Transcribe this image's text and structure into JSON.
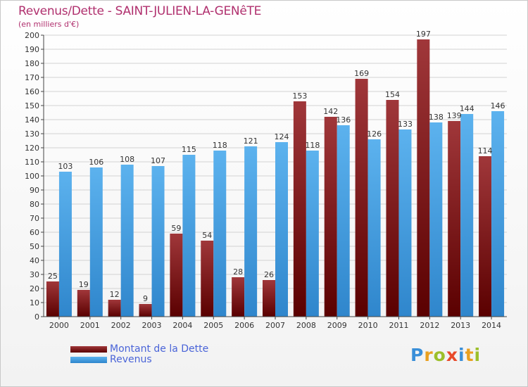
{
  "header": {
    "title": "Revenus/Dette - SAINT-JULIEN-LA-GENêTE",
    "subtitle": "(en milliers d'€)"
  },
  "chart_data": {
    "type": "bar",
    "categories": [
      "2000",
      "2001",
      "2002",
      "2003",
      "2004",
      "2005",
      "2006",
      "2007",
      "2008",
      "2009",
      "2010",
      "2011",
      "2012",
      "2013",
      "2014"
    ],
    "series": [
      {
        "name": "Montant de la Dette",
        "color": "#7a1a1a",
        "values": [
          25,
          19,
          12,
          9,
          59,
          54,
          28,
          26,
          153,
          142,
          169,
          154,
          197,
          139,
          114
        ]
      },
      {
        "name": "Revenus",
        "color": "#4fa6e6",
        "values": [
          103,
          106,
          108,
          107,
          115,
          118,
          121,
          124,
          118,
          136,
          126,
          133,
          138,
          144,
          146
        ]
      }
    ],
    "ylim": [
      0,
      200
    ],
    "yticks": [
      0,
      10,
      20,
      30,
      40,
      50,
      60,
      70,
      80,
      90,
      100,
      110,
      120,
      130,
      140,
      150,
      160,
      170,
      180,
      190,
      200
    ],
    "grid": true,
    "legend_position": "bottom-left"
  },
  "logo": {
    "text": "Proxiti"
  }
}
